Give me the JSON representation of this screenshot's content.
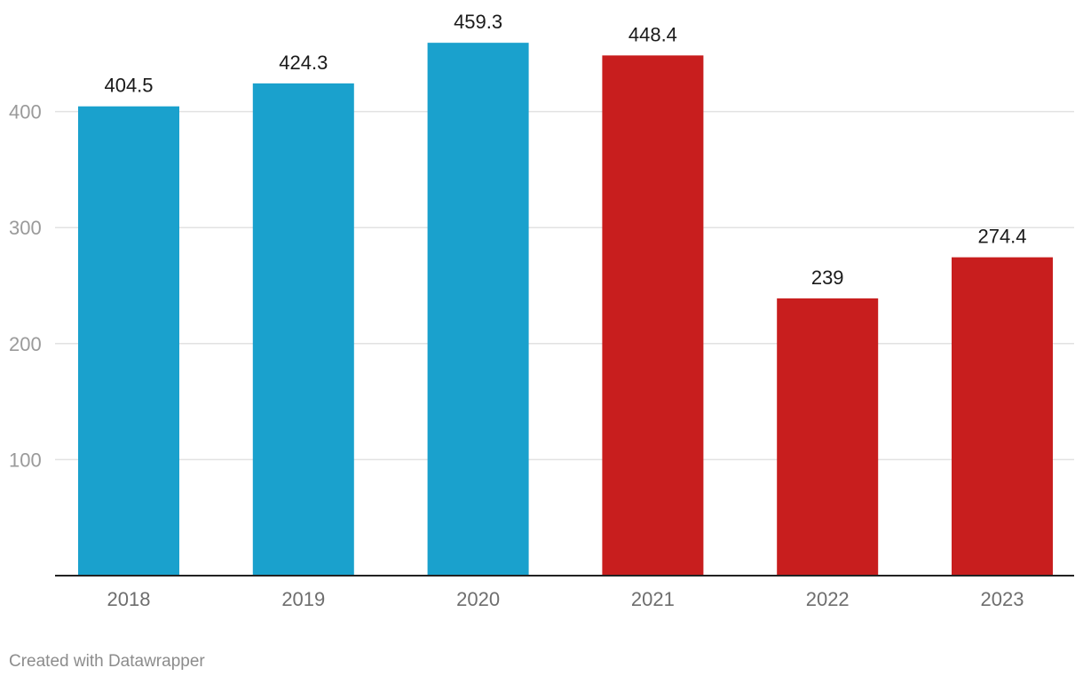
{
  "chart_data": {
    "type": "bar",
    "categories": [
      "2018",
      "2019",
      "2020",
      "2021",
      "2022",
      "2023"
    ],
    "values": [
      404.5,
      424.3,
      459.3,
      448.4,
      239,
      274.4
    ],
    "data_labels": [
      "404.5",
      "424.3",
      "459.3",
      "448.4",
      "239",
      "274.4"
    ],
    "colors": [
      "#1aa1cd",
      "#1aa1cd",
      "#1aa1cd",
      "#c81e1e",
      "#c81e1e",
      "#c81e1e"
    ],
    "yticks": [
      100,
      200,
      300,
      400
    ],
    "ylim": [
      0,
      460
    ],
    "grid": true,
    "title": "",
    "xlabel": "",
    "ylabel": ""
  },
  "footer": {
    "credit": "Created with Datawrapper"
  }
}
